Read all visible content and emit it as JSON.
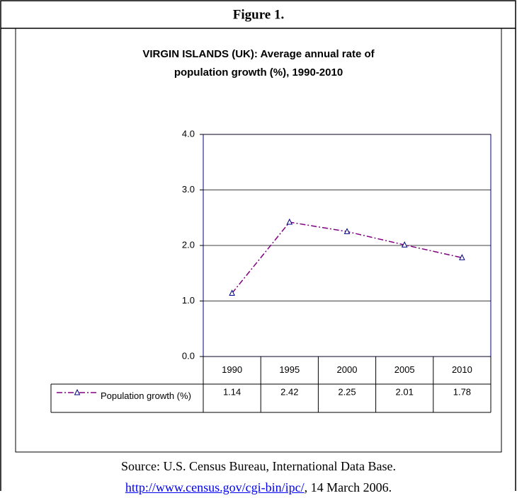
{
  "figure_label": "Figure 1.",
  "chart_data": {
    "type": "line",
    "title": [
      "VIRGIN ISLANDS (UK): Average annual rate of",
      "population growth (%), 1990-2010"
    ],
    "categories": [
      "1990",
      "1995",
      "2000",
      "2005",
      "2010"
    ],
    "series": [
      {
        "name": "Population growth (%)",
        "color": "#800080",
        "values": [
          1.14,
          2.42,
          2.25,
          2.01,
          1.78
        ]
      }
    ],
    "ylim": [
      0,
      4
    ],
    "yticks": [
      {
        "value": 0,
        "label": "0.0"
      },
      {
        "value": 1,
        "label": "1.0"
      },
      {
        "value": 2,
        "label": "2.0"
      },
      {
        "value": 3,
        "label": "3.0"
      },
      {
        "value": 4,
        "label": "4.0"
      }
    ],
    "grid": true,
    "data_table": true
  },
  "source": {
    "text": "Source: U.S. Census Bureau, International Data Base.",
    "link": "http://www.census.gov/cgi-bin/ipc/",
    "date": ", 14 March 2006."
  }
}
